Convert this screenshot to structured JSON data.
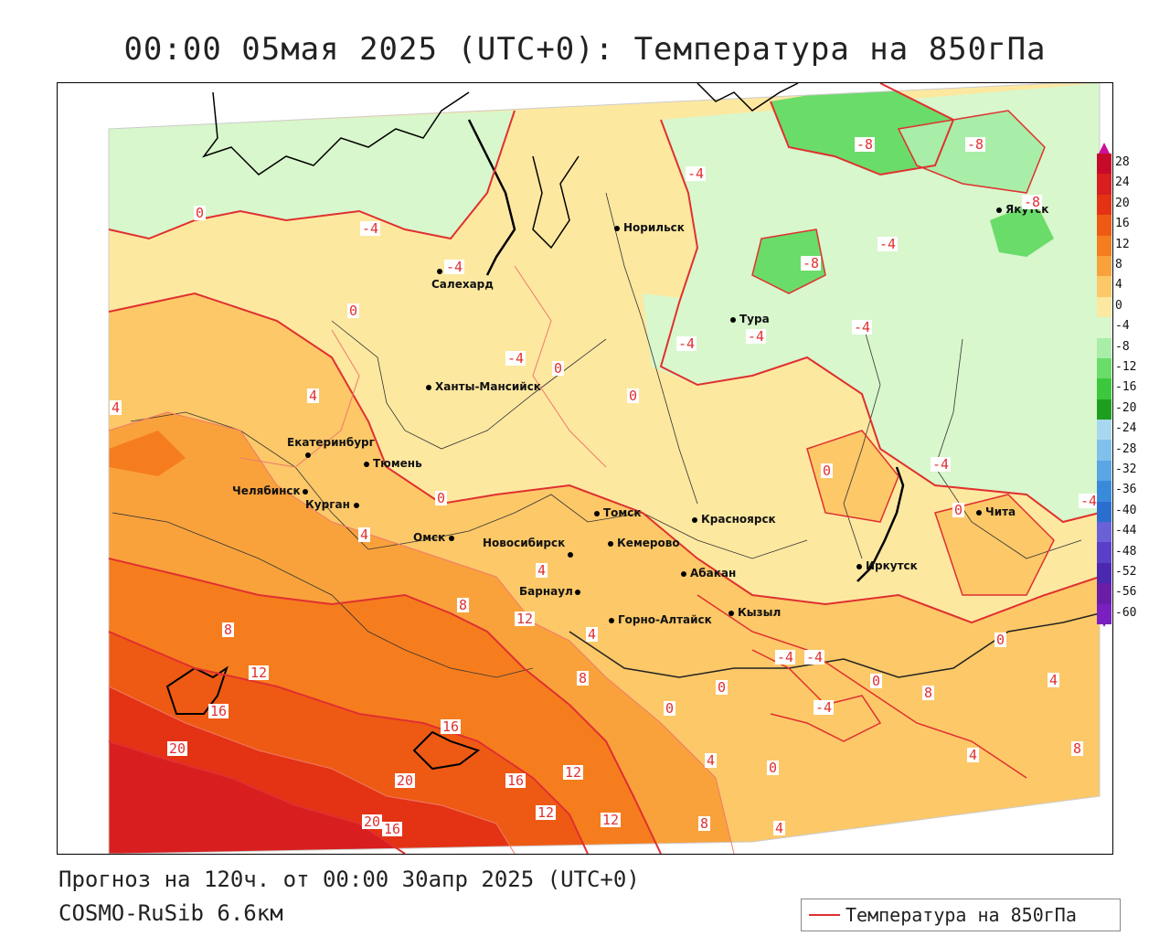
{
  "title": "00:00 05мая 2025 (UTC+0): Температура на 850гПа",
  "footer": {
    "forecast": "Прогноз на 120ч. от 00:00 30апр 2025 (UTC+0)",
    "model": "COSMO-RuSib 6.6км"
  },
  "legend": {
    "label": "Температура на 850гПа",
    "color": "#e03030"
  },
  "colorbar": {
    "ticks": [
      "28",
      "24",
      "20",
      "16",
      "12",
      "8",
      "4",
      "0",
      "-4",
      "-8",
      "-12",
      "-16",
      "-20",
      "-24",
      "-28",
      "-32",
      "-36",
      "-40",
      "-44",
      "-48",
      "-52",
      "-56",
      "-60"
    ],
    "colors": [
      "#c80a2a",
      "#d81e1e",
      "#e43214",
      "#ee5a14",
      "#f67d1e",
      "#f9a23c",
      "#fcc868",
      "#fde8a0",
      "#d8f7cc",
      "#a8eea8",
      "#6adc6a",
      "#3cc83c",
      "#1e9e1e",
      "#a8d8f0",
      "#80c0ec",
      "#5aa6e4",
      "#3a8adc",
      "#2a6ed0",
      "#6a60d8",
      "#5a40c8",
      "#4a28b0",
      "#6a1ea8",
      "#7a20c0"
    ]
  },
  "cities": [
    {
      "name": "Норильск"
    },
    {
      "name": "Якутск"
    },
    {
      "name": "Салехард"
    },
    {
      "name": "Тура"
    },
    {
      "name": "Ханты-Мансийск"
    },
    {
      "name": "Екатеринбург"
    },
    {
      "name": "Тюмень"
    },
    {
      "name": "Челябинск"
    },
    {
      "name": "Курган"
    },
    {
      "name": "Омск"
    },
    {
      "name": "Томск"
    },
    {
      "name": "Красноярск"
    },
    {
      "name": "Новосибирск"
    },
    {
      "name": "Кемерово"
    },
    {
      "name": "Абакан"
    },
    {
      "name": "Барнаул"
    },
    {
      "name": "Иркутск"
    },
    {
      "name": "Горно-Алтайск"
    },
    {
      "name": "Кызыл"
    },
    {
      "name": "Чита"
    }
  ],
  "contour_labels": [
    "-8",
    "-8",
    "-8",
    "-4",
    "0",
    "-4",
    "-4",
    "-8",
    "-4",
    "-4",
    "-4",
    "-4",
    "0",
    "-4",
    "0",
    "4",
    "0",
    "-4",
    "0",
    "4",
    "4",
    "0",
    "0",
    "4",
    "8",
    "12",
    "8",
    "12",
    "16",
    "20",
    "16",
    "20",
    "16",
    "12",
    "12",
    "12",
    "20",
    "16",
    "8",
    "4",
    "4",
    "8",
    "4",
    "0",
    "0",
    "0",
    "0",
    "-4",
    "-4",
    "-4",
    "4",
    "4",
    "8",
    "0",
    "8",
    "-4"
  ]
}
